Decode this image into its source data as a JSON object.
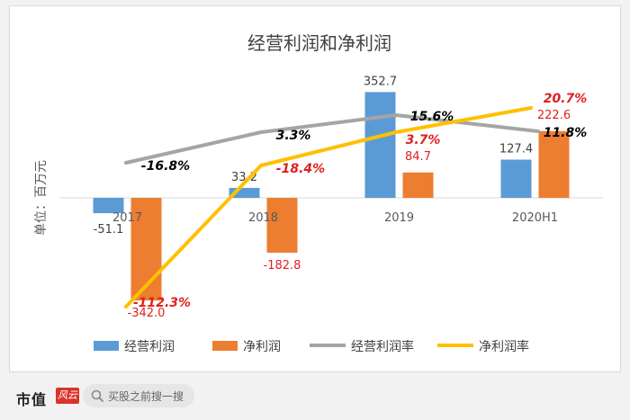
{
  "chart_data": {
    "type": "bar+line",
    "title": "经营利润和净利润",
    "ylabel": "单位：百万元",
    "categories": [
      "2017",
      "2018",
      "2019",
      "2020H1"
    ],
    "ylim": [
      -360,
      380
    ],
    "bar_series": [
      {
        "name": "经营利润",
        "color": "#5b9bd5",
        "values": [
          -51.1,
          33.2,
          352.7,
          127.4
        ],
        "labels": [
          "-51.1",
          "33.2",
          "352.7",
          "127.4"
        ],
        "label_color": "#404040"
      },
      {
        "name": "净利润",
        "color": "#ed7d31",
        "values": [
          -342.0,
          -182.8,
          84.7,
          222.6
        ],
        "labels": [
          "-342.0",
          "-182.8",
          "84.7",
          "222.6"
        ],
        "label_color": "#e02020"
      }
    ],
    "line_series": [
      {
        "name": "经营利润率",
        "color": "#a5a5a5",
        "values": [
          -16.8,
          3.3,
          15.6,
          11.8
        ],
        "labels": [
          "-16.8%",
          "3.3%",
          "15.6%",
          "11.8%"
        ],
        "label_color": "#000000"
      },
      {
        "name": "净利润率",
        "color": "#ffc000",
        "values": [
          -112.3,
          -18.4,
          3.7,
          20.7
        ],
        "labels": [
          "-112.3%",
          "-18.4%",
          "3.7%",
          "20.7%"
        ],
        "label_color": "#e02020"
      }
    ],
    "legend": "bottom",
    "grid": false
  },
  "footer": {
    "brand": "市值",
    "brand_mark": "风云",
    "search_placeholder": "买股之前搜一搜"
  }
}
